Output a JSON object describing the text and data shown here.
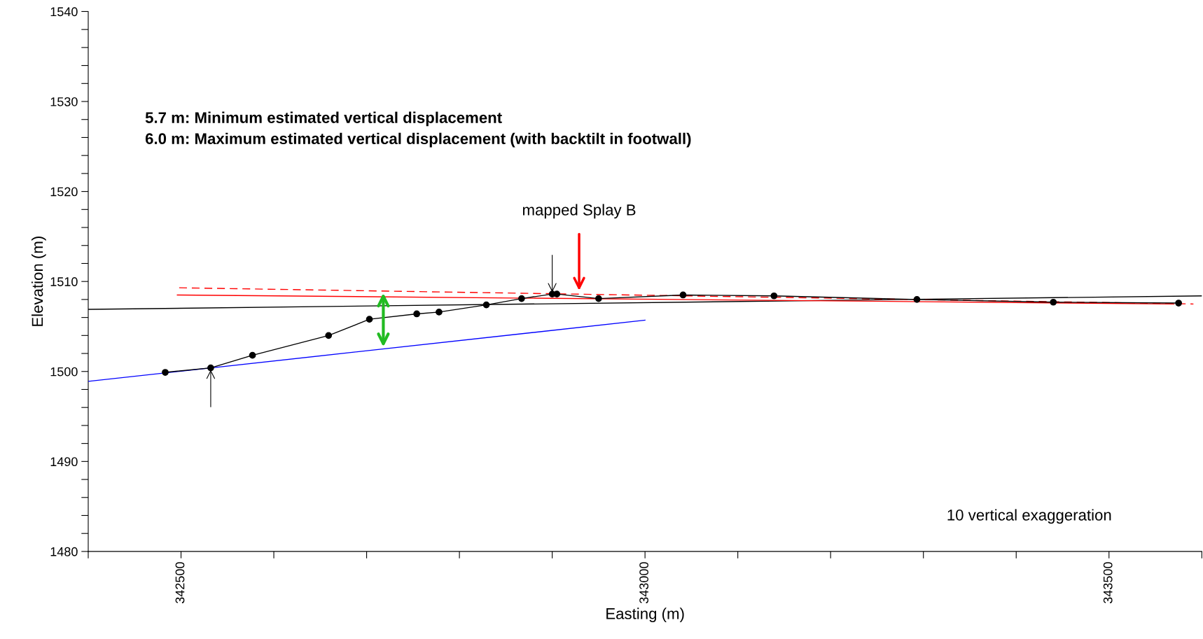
{
  "chart_data": {
    "type": "line",
    "xlabel": "Easting (m)",
    "ylabel": "Elevation (m)",
    "xlim": [
      342400,
      343600
    ],
    "ylim": [
      1480,
      1540
    ],
    "xticks": [
      {
        "value": 342400,
        "label": null
      },
      {
        "value": 342500,
        "label": "342500"
      },
      {
        "value": 342600,
        "label": null
      },
      {
        "value": 342700,
        "label": null
      },
      {
        "value": 342800,
        "label": null
      },
      {
        "value": 342900,
        "label": null
      },
      {
        "value": 343000,
        "label": "343000"
      },
      {
        "value": 343100,
        "label": null
      },
      {
        "value": 343200,
        "label": null
      },
      {
        "value": 343300,
        "label": null
      },
      {
        "value": 343400,
        "label": null
      },
      {
        "value": 343500,
        "label": "343500"
      },
      {
        "value": 343600,
        "label": null
      }
    ],
    "yticks": [
      1480,
      {
        "value": 1482,
        "label": null
      },
      {
        "value": 1484,
        "label": null
      },
      {
        "value": 1486,
        "label": null
      },
      {
        "value": 1488,
        "label": null
      },
      1490,
      {
        "value": 1492,
        "label": null
      },
      {
        "value": 1494,
        "label": null
      },
      {
        "value": 1496,
        "label": null
      },
      {
        "value": 1498,
        "label": null
      },
      1500,
      {
        "value": 1502,
        "label": null
      },
      {
        "value": 1504,
        "label": null
      },
      {
        "value": 1506,
        "label": null
      },
      {
        "value": 1508,
        "label": null
      },
      1510,
      {
        "value": 1512,
        "label": null
      },
      {
        "value": 1514,
        "label": null
      },
      {
        "value": 1516,
        "label": null
      },
      {
        "value": 1518,
        "label": null
      },
      1520,
      {
        "value": 1522,
        "label": null
      },
      {
        "value": 1524,
        "label": null
      },
      {
        "value": 1526,
        "label": null
      },
      {
        "value": 1528,
        "label": null
      },
      1530,
      {
        "value": 1532,
        "label": null
      },
      {
        "value": 1534,
        "label": null
      },
      {
        "value": 1536,
        "label": null
      },
      {
        "value": 1538,
        "label": null
      },
      1540
    ],
    "grid": false,
    "series": [
      {
        "color": "#000000",
        "x": [
          342400,
          343600
        ],
        "values": [
          1506.9,
          1508.4
        ],
        "marker": "none",
        "line_style": "solid"
      },
      {
        "color": "#ff0000",
        "x": [
          342496,
          343570
        ],
        "values": [
          1508.5,
          1507.5
        ],
        "marker": "none",
        "line_style": "solid"
      },
      {
        "color": "#ff0000",
        "x": [
          342498,
          343591
        ],
        "values": [
          1509.3,
          1507.5
        ],
        "marker": "none",
        "line_style": "dashed"
      },
      {
        "color": "#0000ff",
        "x": [
          342400,
          343000
        ],
        "values": [
          1498.9,
          1505.7
        ],
        "marker": "none",
        "line_style": "solid"
      },
      {
        "color": "#000000",
        "x": [
          342483,
          342532,
          342577,
          342659,
          342703,
          342754,
          342778,
          342829,
          342867,
          342900,
          342905,
          342950,
          343041,
          343139,
          343293,
          343440,
          343575
        ],
        "values": [
          1499.9,
          1500.4,
          1501.8,
          1504.0,
          1505.8,
          1506.4,
          1506.6,
          1507.4,
          1508.1,
          1508.6,
          1508.6,
          1508.1,
          1508.5,
          1508.4,
          1508.0,
          1507.7,
          1507.6
        ],
        "marker": "circle",
        "line_style": "solid"
      }
    ],
    "annotations": [
      "5.7 m: Minimum estimated vertical displacement",
      "6.0 m: Maximum estimated vertical displacement (with backtilt in footwall)",
      {
        "text": "mapped Splay B",
        "x": 342929,
        "y": 1509
      },
      "10 vertical exaggeration"
    ]
  }
}
